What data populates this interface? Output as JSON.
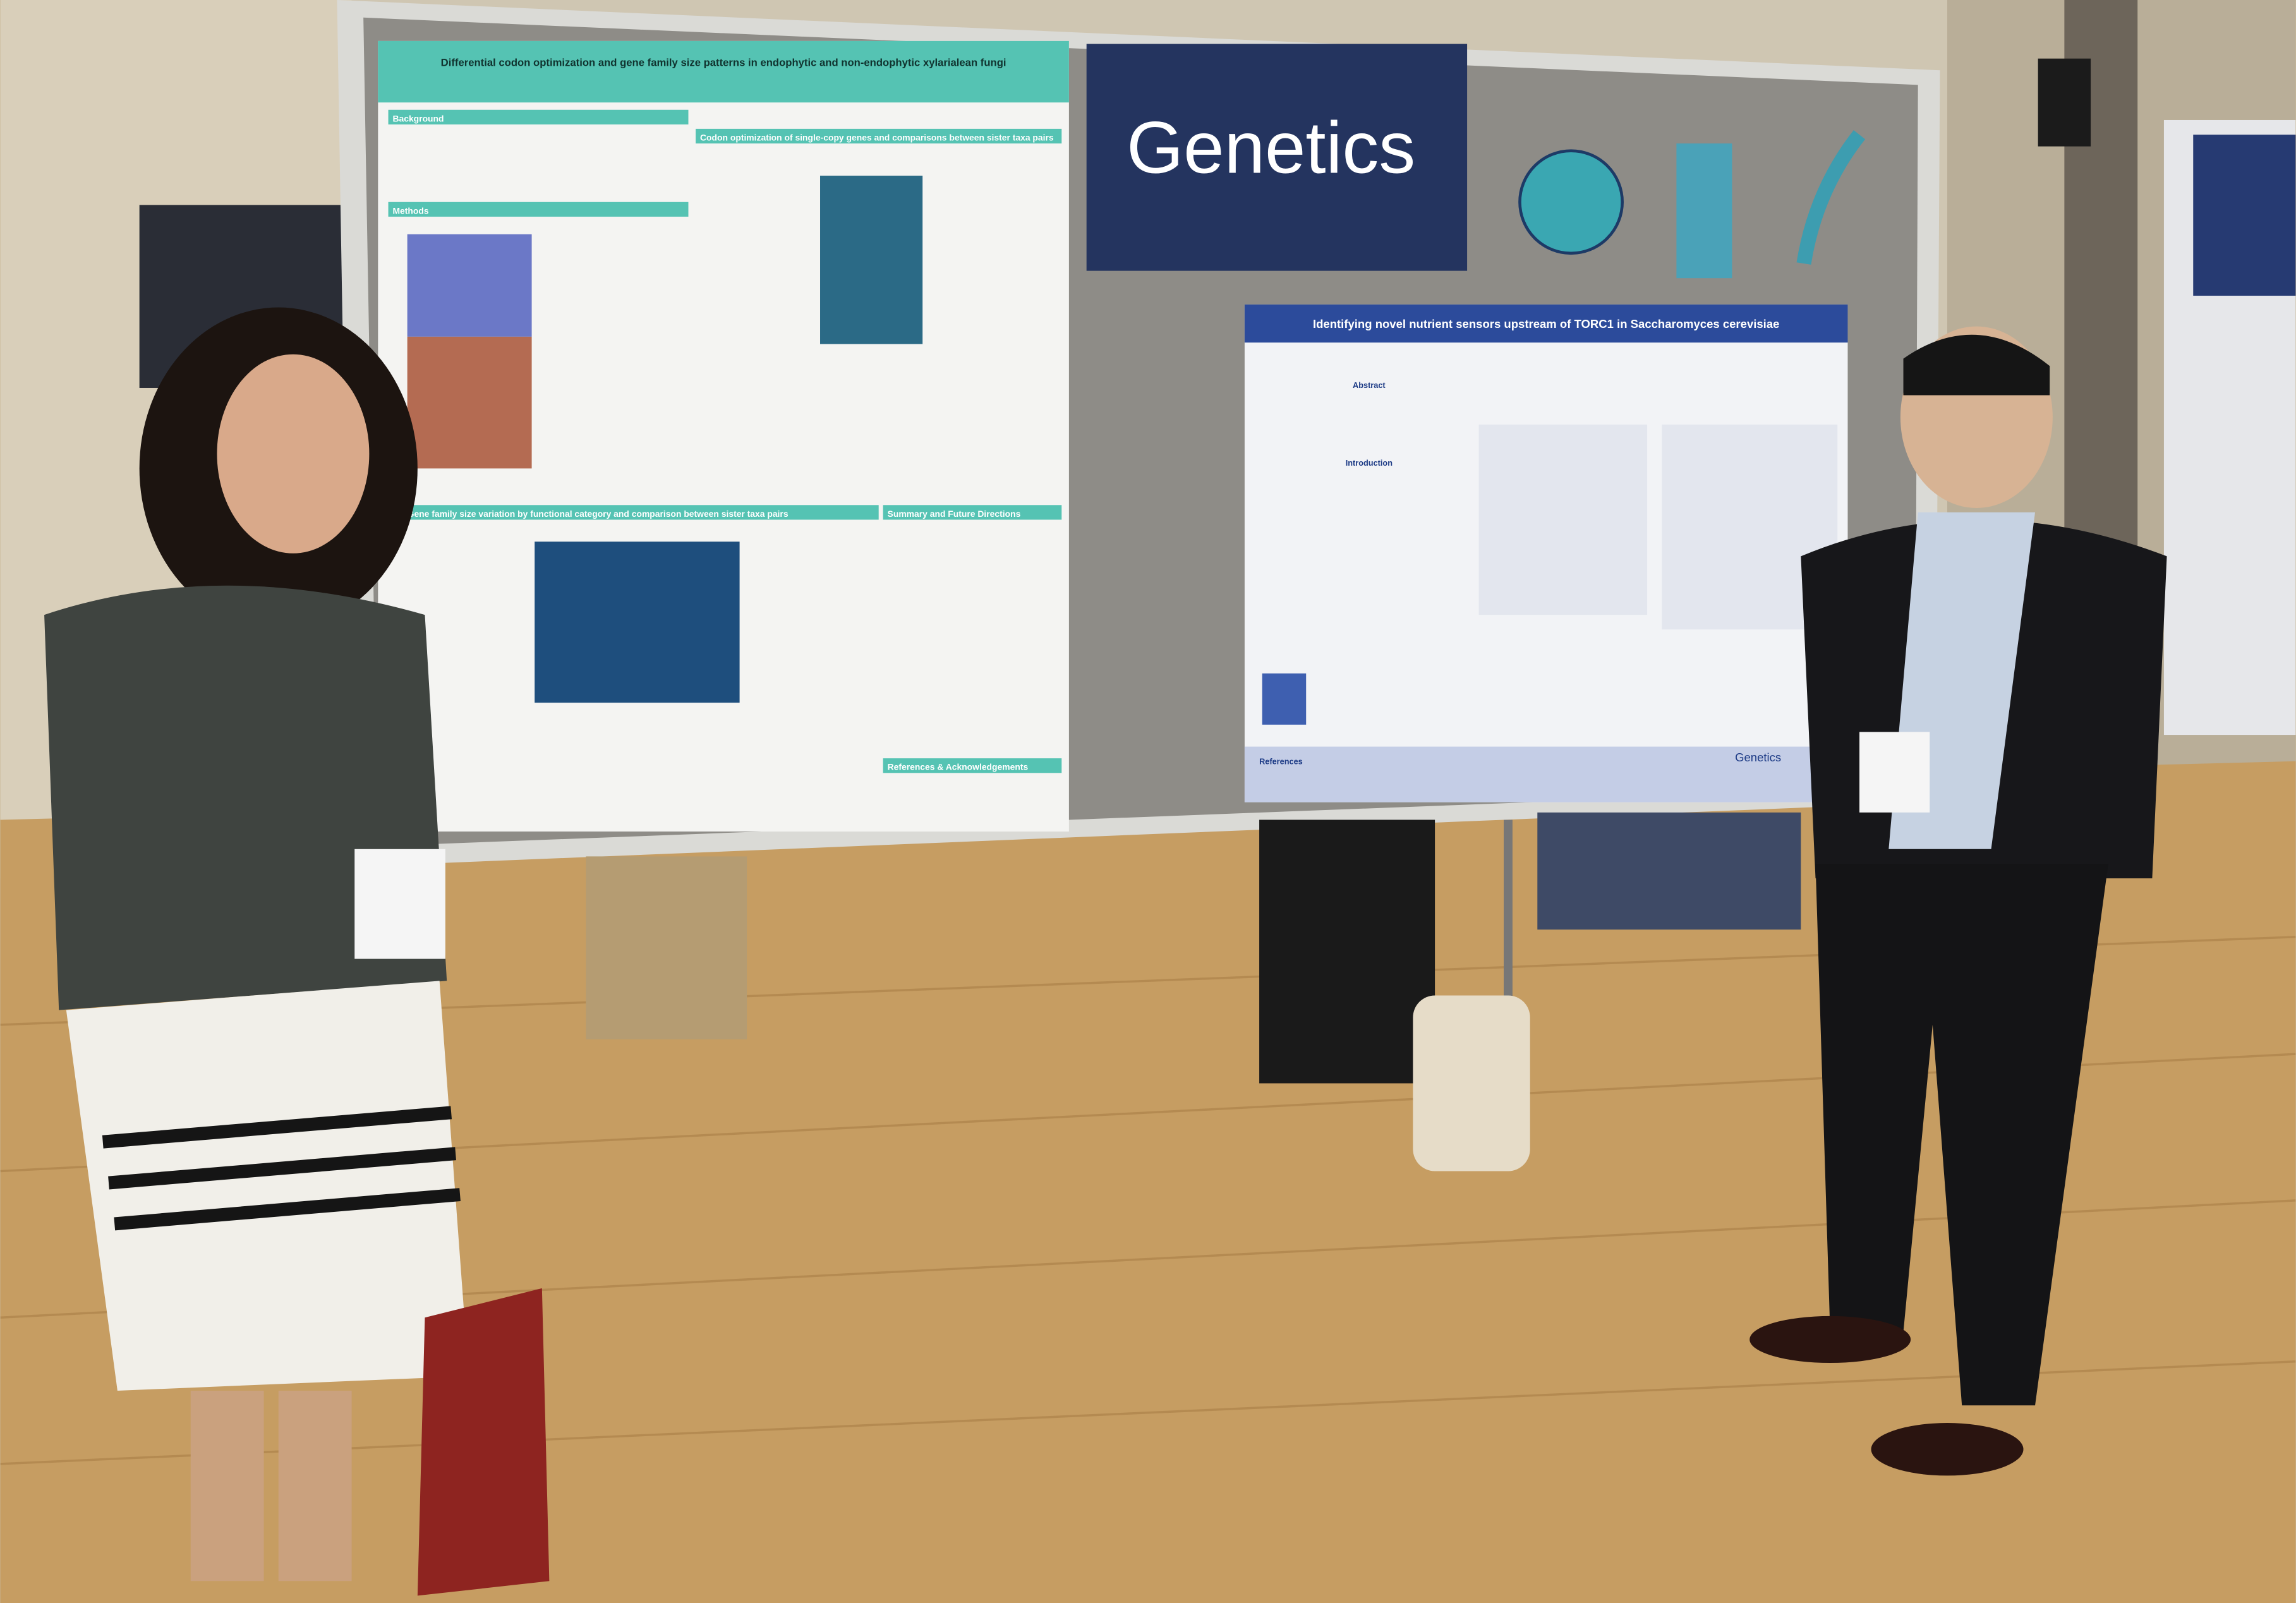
{
  "sign": "Genetics",
  "posters": [
    {
      "title": "Differential codon optimization and gene family size patterns in endophytic and non-endophytic xylarialean fungi",
      "sections": [
        "Background",
        "Methods",
        "Codon optimization of single-copy genes and comparisons between sister taxa pairs",
        "Gene family size variation by functional category and comparison between sister taxa pairs",
        "Summary and Future Directions",
        "References & Acknowledgements"
      ]
    },
    {
      "title": "Identifying novel nutrient sensors upstream of TORC1 in Saccharomyces cerevisiae",
      "sections": [
        "Abstract",
        "Introduction",
        "References"
      ],
      "logo": "Genetics"
    }
  ]
}
